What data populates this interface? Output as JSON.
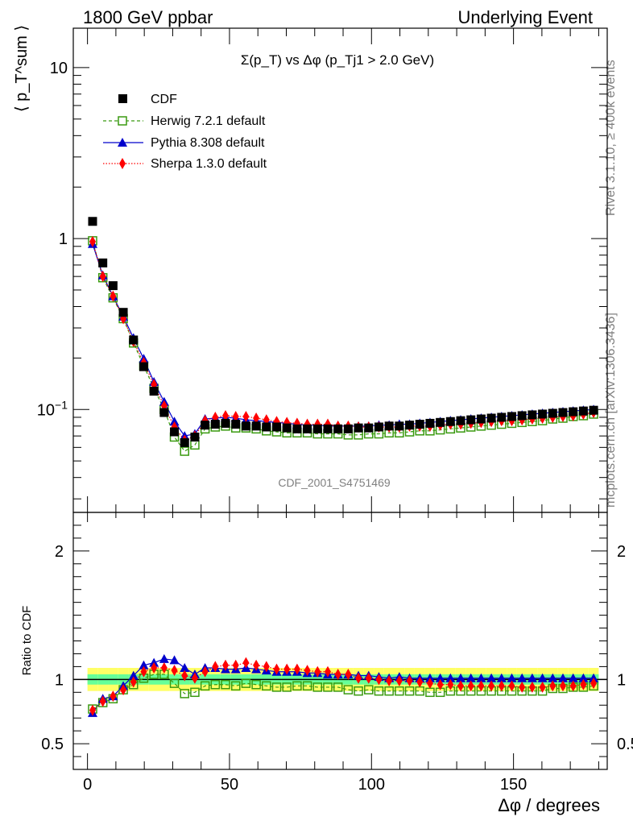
{
  "header": {
    "left": "1800 GeV ppbar",
    "right": "Underlying Event"
  },
  "side_labels": {
    "rivet": "Rivet 3.1.10, ≥ 400k events",
    "mcplots": "mcplots.cern.ch [arXiv:1306.3436]"
  },
  "watermark": "CDF_2001_S4751469",
  "chart_data": [
    {
      "type": "scatter",
      "title": "Σ(p_T) vs Δφ (p_Tj1 > 2.0 GeV)",
      "ylabel": "⟨ p_T^sum ⟩",
      "yscale": "log",
      "ylim": [
        0.025,
        17
      ],
      "xlim": [
        -5,
        183
      ],
      "ytick_labels": [
        "10^-1",
        "1",
        "10"
      ],
      "legend_position": "top-left",
      "x": [
        1.8,
        5.4,
        9.0,
        12.6,
        16.2,
        19.8,
        23.4,
        27.0,
        30.6,
        34.2,
        37.8,
        41.4,
        45.0,
        48.6,
        52.2,
        55.8,
        59.4,
        63.0,
        66.6,
        70.2,
        73.8,
        77.4,
        81.0,
        84.6,
        88.2,
        91.8,
        95.4,
        99.0,
        102.6,
        106.2,
        109.8,
        113.4,
        117.0,
        120.6,
        124.2,
        127.8,
        131.4,
        135.0,
        138.6,
        142.2,
        145.8,
        149.4,
        153.0,
        156.6,
        160.2,
        163.8,
        167.4,
        171.0,
        174.6,
        178.2
      ],
      "series": [
        {
          "name": "CDF",
          "color": "#000000",
          "marker": "filled-square",
          "values": [
            1.26,
            0.72,
            0.53,
            0.37,
            0.255,
            0.178,
            0.128,
            0.096,
            0.074,
            0.064,
            0.069,
            0.081,
            0.082,
            0.083,
            0.082,
            0.08,
            0.08,
            0.079,
            0.079,
            0.078,
            0.077,
            0.077,
            0.077,
            0.077,
            0.077,
            0.077,
            0.078,
            0.078,
            0.079,
            0.08,
            0.08,
            0.081,
            0.082,
            0.083,
            0.084,
            0.085,
            0.086,
            0.087,
            0.088,
            0.089,
            0.09,
            0.091,
            0.092,
            0.093,
            0.094,
            0.095,
            0.096,
            0.097,
            0.098,
            0.099
          ]
        },
        {
          "name": "Herwig 7.2.1 default",
          "color": "#3a9a10",
          "marker": "open-square",
          "line": "dashed",
          "values": [
            0.97,
            0.59,
            0.45,
            0.34,
            0.245,
            0.18,
            0.133,
            0.1,
            0.069,
            0.057,
            0.062,
            0.077,
            0.079,
            0.08,
            0.078,
            0.078,
            0.077,
            0.075,
            0.074,
            0.073,
            0.073,
            0.073,
            0.072,
            0.072,
            0.072,
            0.071,
            0.071,
            0.072,
            0.072,
            0.073,
            0.073,
            0.074,
            0.075,
            0.075,
            0.076,
            0.077,
            0.078,
            0.079,
            0.08,
            0.081,
            0.082,
            0.083,
            0.084,
            0.085,
            0.086,
            0.088,
            0.089,
            0.091,
            0.092,
            0.094
          ]
        },
        {
          "name": "Pythia 8.308 default",
          "color": "#0000cc",
          "marker": "filled-triangle",
          "line": "solid",
          "values": [
            0.93,
            0.61,
            0.46,
            0.35,
            0.262,
            0.198,
            0.145,
            0.111,
            0.085,
            0.07,
            0.072,
            0.088,
            0.089,
            0.09,
            0.089,
            0.087,
            0.086,
            0.085,
            0.084,
            0.083,
            0.082,
            0.081,
            0.081,
            0.08,
            0.08,
            0.08,
            0.08,
            0.08,
            0.081,
            0.081,
            0.082,
            0.082,
            0.083,
            0.084,
            0.085,
            0.086,
            0.087,
            0.088,
            0.089,
            0.09,
            0.091,
            0.092,
            0.093,
            0.094,
            0.095,
            0.096,
            0.097,
            0.098,
            0.099,
            0.1
          ]
        },
        {
          "name": "Sherpa 1.3.0 default",
          "color": "#ff0000",
          "marker": "filled-diamond",
          "line": "dotted",
          "values": [
            0.96,
            0.6,
            0.46,
            0.34,
            0.25,
            0.188,
            0.14,
            0.105,
            0.079,
            0.066,
            0.07,
            0.086,
            0.09,
            0.092,
            0.091,
            0.091,
            0.089,
            0.087,
            0.085,
            0.084,
            0.083,
            0.082,
            0.082,
            0.082,
            0.08,
            0.08,
            0.079,
            0.079,
            0.079,
            0.079,
            0.079,
            0.08,
            0.08,
            0.08,
            0.081,
            0.082,
            0.082,
            0.083,
            0.084,
            0.085,
            0.086,
            0.086,
            0.087,
            0.088,
            0.089,
            0.09,
            0.091,
            0.092,
            0.094,
            0.096
          ]
        }
      ]
    },
    {
      "type": "scatter",
      "ylabel": "Ratio to CDF",
      "xlabel": "Δφ / degrees",
      "ylim": [
        0.3,
        2.3
      ],
      "xlim": [
        -5,
        183
      ],
      "xtick_labels": [
        "0",
        "50",
        "100",
        "150"
      ],
      "ytick_labels": [
        "0.5",
        "1",
        "2"
      ],
      "band_colors": {
        "inner": "#66ff99",
        "outer": "#ffff66"
      },
      "band_inner_halfwidth": 0.04,
      "band_outer_halfwidth": 0.09,
      "x": [
        1.8,
        5.4,
        9.0,
        12.6,
        16.2,
        19.8,
        23.4,
        27.0,
        30.6,
        34.2,
        37.8,
        41.4,
        45.0,
        48.6,
        52.2,
        55.8,
        59.4,
        63.0,
        66.6,
        70.2,
        73.8,
        77.4,
        81.0,
        84.6,
        88.2,
        91.8,
        95.4,
        99.0,
        102.6,
        106.2,
        109.8,
        113.4,
        117.0,
        120.6,
        124.2,
        127.8,
        131.4,
        135.0,
        138.6,
        142.2,
        145.8,
        149.4,
        153.0,
        156.6,
        160.2,
        163.8,
        167.4,
        171.0,
        174.6,
        178.2
      ],
      "series": [
        {
          "name": "Herwig 7.2.1 default",
          "values": [
            0.77,
            0.82,
            0.85,
            0.92,
            0.96,
            1.01,
            1.04,
            1.04,
            0.97,
            0.89,
            0.9,
            0.95,
            0.96,
            0.96,
            0.95,
            0.97,
            0.96,
            0.95,
            0.94,
            0.94,
            0.95,
            0.95,
            0.94,
            0.94,
            0.94,
            0.92,
            0.91,
            0.92,
            0.91,
            0.91,
            0.91,
            0.91,
            0.91,
            0.9,
            0.9,
            0.91,
            0.91,
            0.91,
            0.91,
            0.91,
            0.91,
            0.91,
            0.91,
            0.91,
            0.91,
            0.93,
            0.93,
            0.94,
            0.94,
            0.95
          ]
        },
        {
          "name": "Pythia 8.308 default",
          "values": [
            0.74,
            0.85,
            0.87,
            0.95,
            1.03,
            1.11,
            1.13,
            1.16,
            1.15,
            1.09,
            1.04,
            1.09,
            1.09,
            1.08,
            1.08,
            1.09,
            1.08,
            1.07,
            1.06,
            1.06,
            1.06,
            1.05,
            1.05,
            1.04,
            1.04,
            1.04,
            1.03,
            1.03,
            1.02,
            1.01,
            1.02,
            1.01,
            1.01,
            1.01,
            1.01,
            1.01,
            1.01,
            1.01,
            1.01,
            1.01,
            1.01,
            1.01,
            1.01,
            1.01,
            1.01,
            1.01,
            1.01,
            1.01,
            1.01,
            1.01
          ]
        },
        {
          "name": "Sherpa 1.3.0 default",
          "values": [
            0.76,
            0.83,
            0.87,
            0.92,
            0.98,
            1.06,
            1.09,
            1.09,
            1.07,
            1.03,
            1.01,
            1.06,
            1.1,
            1.11,
            1.11,
            1.13,
            1.11,
            1.1,
            1.08,
            1.08,
            1.08,
            1.07,
            1.06,
            1.06,
            1.04,
            1.04,
            1.01,
            1.01,
            1.0,
            0.99,
            0.99,
            0.99,
            0.98,
            0.97,
            0.96,
            0.96,
            0.95,
            0.95,
            0.95,
            0.95,
            0.95,
            0.95,
            0.94,
            0.94,
            0.94,
            0.95,
            0.95,
            0.95,
            0.96,
            0.97
          ]
        }
      ]
    }
  ]
}
